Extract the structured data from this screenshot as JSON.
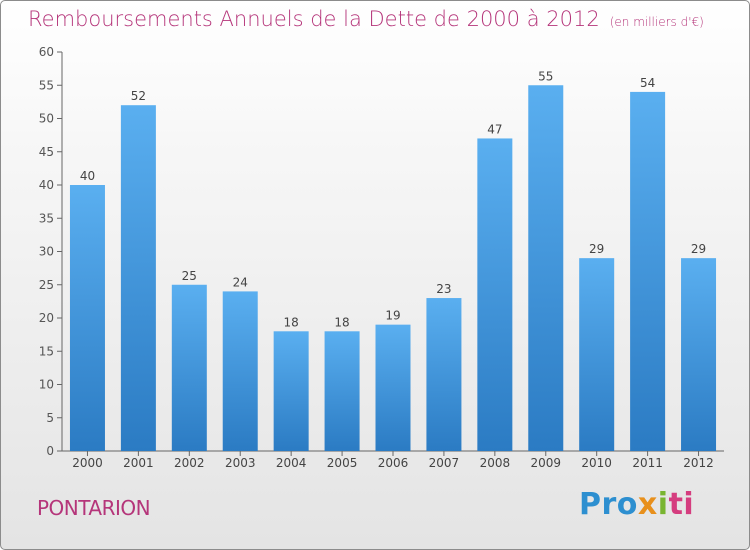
{
  "header": {
    "title": "Remboursements Annuels de la Dette de 2000 à 2012",
    "unit": "(en milliers d'€)"
  },
  "footer": {
    "commune": "PONTARION",
    "brand_parts": [
      "Pro",
      "x",
      "i",
      "ti"
    ]
  },
  "colors": {
    "title": "#b5357a",
    "bar_top": "#5aaff0",
    "bar_bottom": "#2b7bc3",
    "axis": "#666666"
  },
  "chart_data": {
    "type": "bar",
    "title": "Remboursements Annuels de la Dette de 2000 à 2012",
    "ylabel": "",
    "xlabel": "",
    "ylim": [
      0,
      60
    ],
    "yticks": [
      0,
      5,
      10,
      15,
      20,
      25,
      30,
      35,
      40,
      45,
      50,
      55,
      60
    ],
    "grid": false,
    "categories": [
      "2000",
      "2001",
      "2002",
      "2003",
      "2004",
      "2005",
      "2006",
      "2007",
      "2008",
      "2009",
      "2010",
      "2011",
      "2012"
    ],
    "values": [
      40,
      52,
      25,
      24,
      18,
      18,
      19,
      23,
      47,
      55,
      29,
      54,
      29
    ]
  }
}
